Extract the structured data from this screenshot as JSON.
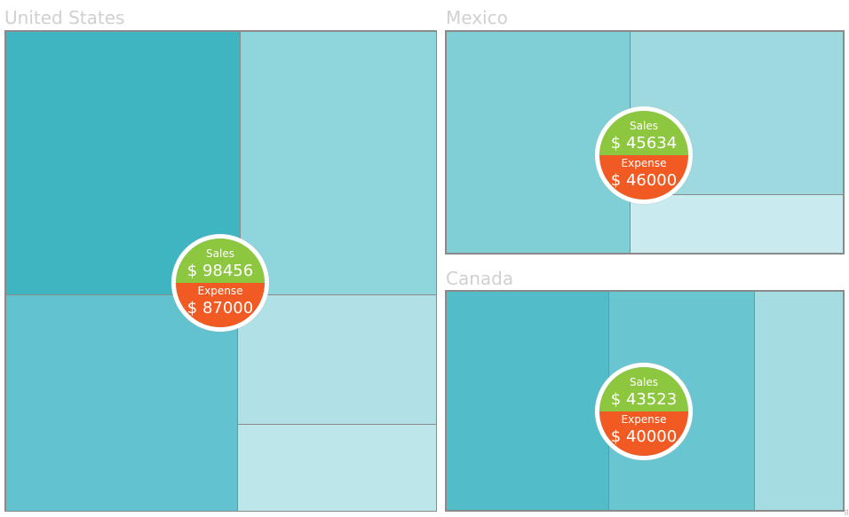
{
  "regions": [
    {
      "name": "United States",
      "sales_label": "Sales",
      "sales": "$ 98456",
      "expense_label": "Expense",
      "expense": "$ 87000"
    },
    {
      "name": "Mexico",
      "sales_label": "Sales",
      "sales": "$ 45634",
      "expense_label": "Expense",
      "expense": "$ 46000"
    },
    {
      "name": "Canada",
      "sales_label": "Sales",
      "sales": "$ 43523",
      "expense_label": "Expense",
      "expense": "$ 40000"
    }
  ],
  "colors": {
    "sales": "#8dc63f",
    "expense": "#f15a22"
  }
}
